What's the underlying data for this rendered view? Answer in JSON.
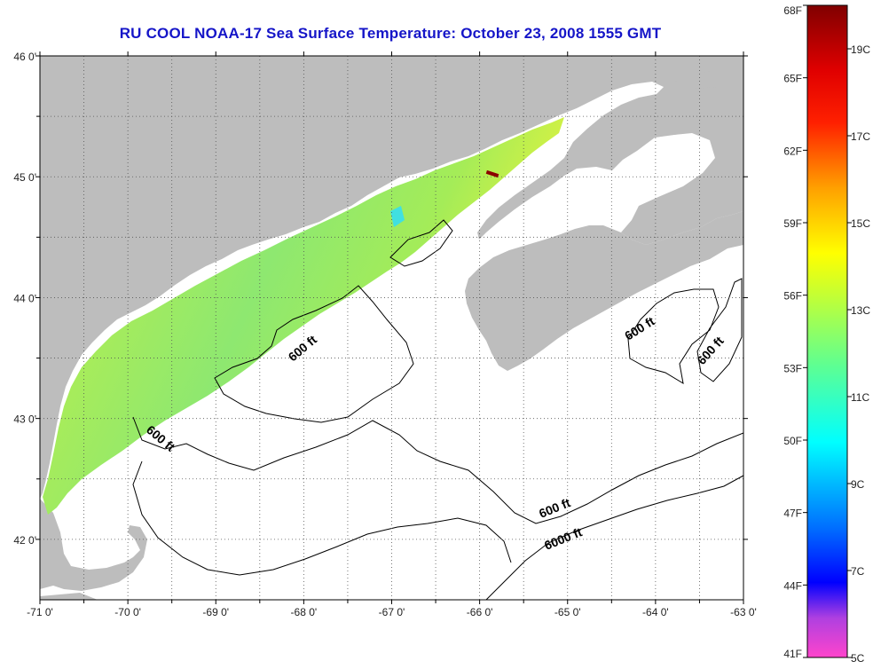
{
  "title": "RU COOL  NOAA-17  Sea Surface Temperature:  October 23, 2008 1555 GMT",
  "map": {
    "lon_range": [
      -71,
      -63
    ],
    "lat_range": [
      41.5,
      46
    ],
    "lon_ticks": [
      "-71 0'",
      "-70 0'",
      "-69 0'",
      "-68 0'",
      "-67 0'",
      "-66 0'",
      "-65 0'",
      "-64 0'",
      "-63 0'"
    ],
    "lat_ticks": [
      "46 0'",
      "45 0'",
      "44 0'",
      "43 0'",
      "42 0'"
    ],
    "grid": true,
    "land_color": "#bdbdbd",
    "water_color": "#ffffff",
    "contour_labels": [
      "600 ft",
      "600 ft",
      "600 ft",
      "600 ft",
      "600 ft",
      "6000 ft"
    ]
  },
  "colorbar": {
    "fahrenheit_labels": [
      "68F",
      "65F",
      "62F",
      "59F",
      "56F",
      "53F",
      "50F",
      "47F",
      "44F",
      "41F"
    ],
    "celsius_labels": [
      "19C",
      "17C",
      "15C",
      "13C",
      "11C",
      "9C",
      "7C",
      "5C"
    ],
    "colors": [
      "#ff44cc",
      "#8b2be2",
      "#0000ff",
      "#0090ff",
      "#00ffff",
      "#60ff90",
      "#d8ff20",
      "#ffff00",
      "#ff9a00",
      "#ff0000",
      "#8b0000"
    ]
  }
}
